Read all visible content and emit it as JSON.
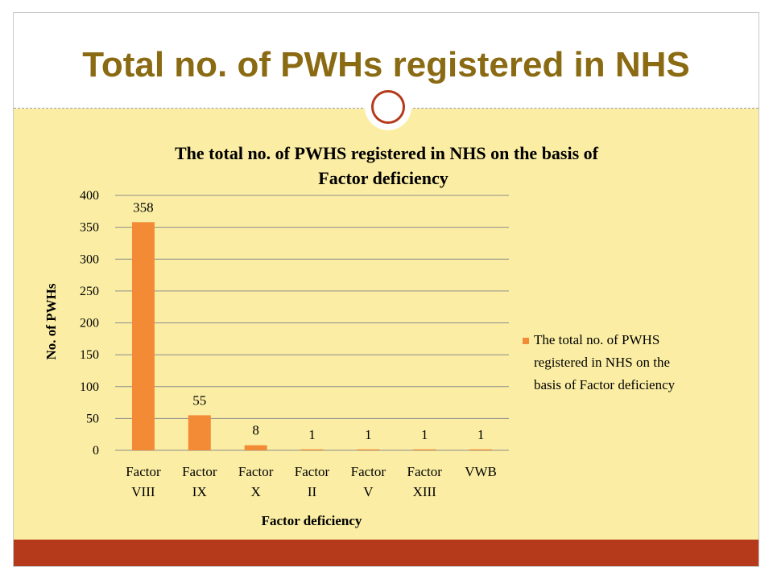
{
  "slide": {
    "title": "Total no. of PWHs registered in NHS"
  },
  "colors": {
    "title": "#8a6a12",
    "content_background": "#fbeea4",
    "bar": "#f38a36",
    "accent_bar": "#b53a1b"
  },
  "chart_data": {
    "type": "bar",
    "title": "The total no. of PWHS registered in NHS on the basis of Factor deficiency",
    "title_lines": [
      "The total no. of PWHS registered in NHS on the basis of",
      "Factor deficiency"
    ],
    "xlabel": "Factor deficiency",
    "ylabel": "No. of PWHs",
    "categories": [
      [
        "Factor",
        "VIII"
      ],
      [
        "Factor",
        "IX"
      ],
      [
        "Factor",
        "X"
      ],
      [
        "Factor",
        "II"
      ],
      [
        "Factor",
        "V"
      ],
      [
        "Factor",
        "XIII"
      ],
      [
        "VWB"
      ]
    ],
    "values": [
      358,
      55,
      8,
      1,
      1,
      1,
      1
    ],
    "ylim": [
      0,
      400
    ],
    "yticks": [
      0,
      50,
      100,
      150,
      200,
      250,
      300,
      350,
      400
    ],
    "grid": true,
    "legend": {
      "placement": "right",
      "lines": [
        "The total no. of PWHS",
        "registered in NHS on the",
        "basis of Factor deficiency"
      ]
    }
  }
}
